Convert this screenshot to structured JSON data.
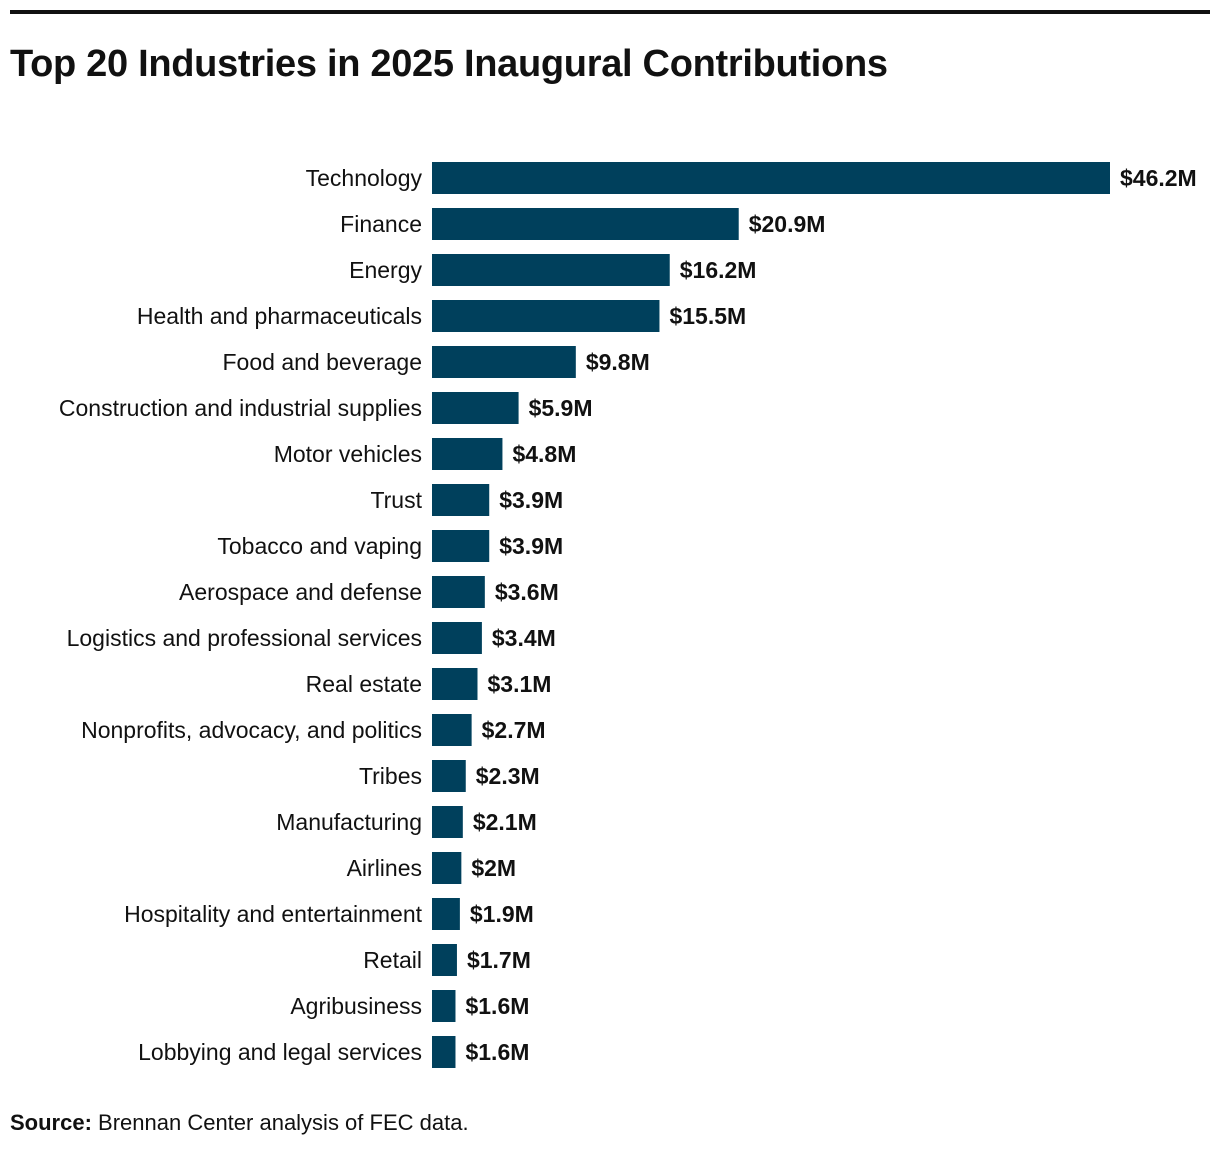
{
  "chart_data": {
    "type": "bar",
    "orientation": "horizontal",
    "title": "Top 20 Industries in 2025 Inaugural Contributions",
    "categories": [
      "Technology",
      "Finance",
      "Energy",
      "Health and pharmaceuticals",
      "Food and beverage",
      "Construction and industrial supplies",
      "Motor vehicles",
      "Trust",
      "Tobacco and vaping",
      "Aerospace and defense",
      "Logistics and professional services",
      "Real estate",
      "Nonprofits, advocacy, and politics",
      "Tribes",
      "Manufacturing",
      "Airlines",
      "Hospitality and entertainment",
      "Retail",
      "Agribusiness",
      "Lobbying and legal services"
    ],
    "values": [
      46.2,
      20.9,
      16.2,
      15.5,
      9.8,
      5.9,
      4.8,
      3.9,
      3.9,
      3.6,
      3.4,
      3.1,
      2.7,
      2.3,
      2.1,
      2.0,
      1.9,
      1.7,
      1.6,
      1.6
    ],
    "value_labels": [
      "$46.2M",
      "$20.9M",
      "$16.2M",
      "$15.5M",
      "$9.8M",
      "$5.9M",
      "$4.8M",
      "$3.9M",
      "$3.9M",
      "$3.6M",
      "$3.4M",
      "$3.1M",
      "$2.7M",
      "$2.3M",
      "$2.1M",
      "$2M",
      "$1.9M",
      "$1.7M",
      "$1.6M",
      "$1.6M"
    ],
    "xlim": [
      0,
      46.2
    ],
    "grid": false,
    "bar_color": "#00405c"
  },
  "source": {
    "label": "Source:",
    "text": " Brennan Center analysis of FEC data."
  }
}
